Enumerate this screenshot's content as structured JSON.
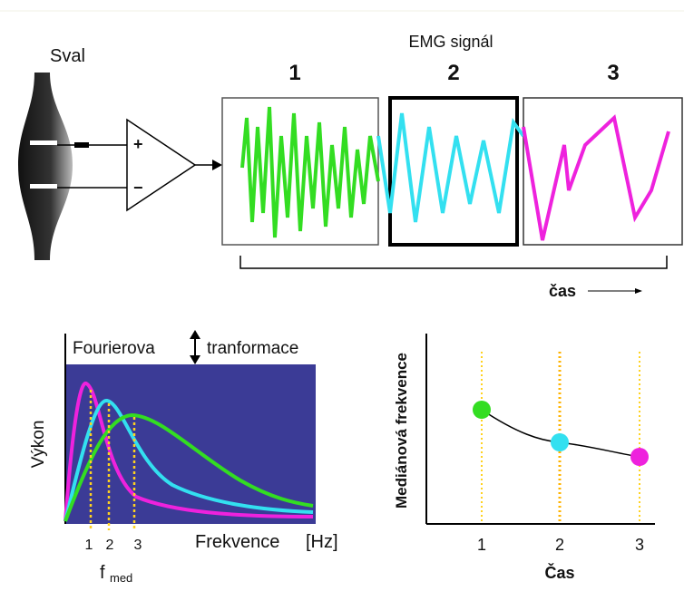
{
  "header": {
    "muscle": "Sval",
    "signal": "EMG signál",
    "segments": [
      "1",
      "2",
      "3"
    ],
    "time": "čas"
  },
  "amplifier": {
    "plus": "+",
    "minus": "−"
  },
  "spectrum": {
    "transform_left": "Fourierova",
    "transform_right": "tranformace",
    "y_label": "Výkon",
    "ticks": [
      "1",
      "2",
      "3"
    ],
    "x_label": "Frekvence",
    "unit": "[Hz]",
    "fmed": "f",
    "fmed_sub": "med"
  },
  "median": {
    "y_label": "Mediánová frekvence",
    "ticks": [
      "1",
      "2",
      "3"
    ],
    "x_label": "Čas"
  }
}
